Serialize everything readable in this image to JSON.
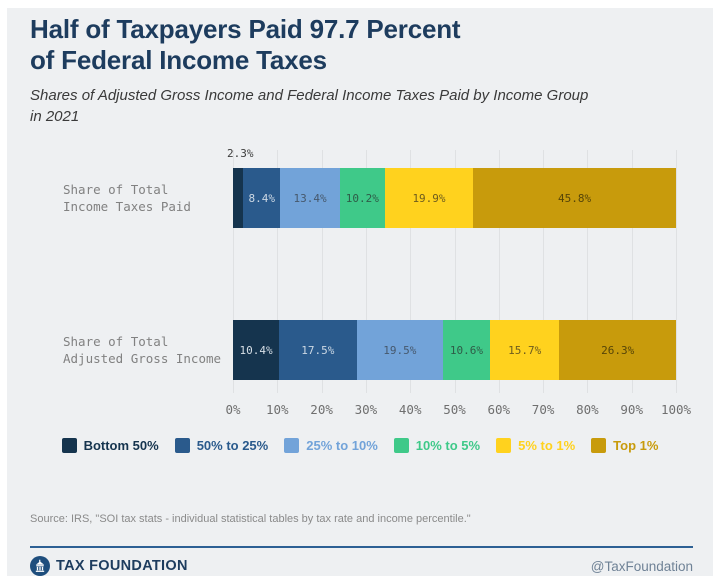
{
  "header": {
    "title": "Half of Taxpayers Paid 97.7 Percent\nof Federal Income Taxes",
    "subtitle": "Shares of Adjusted Gross Income and Federal Income Taxes Paid by Income Group\nin 2021"
  },
  "chart_data": {
    "type": "bar",
    "variant": "horizontal-stacked",
    "title": "Half of Taxpayers Paid 97.7 Percent of Federal Income Taxes",
    "categories": [
      "Share of Total\nIncome Taxes Paid",
      "Share of Total\nAdjusted Gross Income"
    ],
    "series": [
      {
        "name": "Bottom 50%",
        "color": "#15344e",
        "label_color": "#d7dfe6",
        "values": [
          2.3,
          10.4
        ]
      },
      {
        "name": "50% to 25%",
        "color": "#2a5a8c",
        "label_color": "#ccd8e4",
        "values": [
          8.4,
          17.5
        ]
      },
      {
        "name": "25% to 10%",
        "color": "#72a3d9",
        "label_color": "#46586c",
        "values": [
          13.4,
          19.5
        ]
      },
      {
        "name": "10% to 5%",
        "color": "#3fc989",
        "label_color": "#2f5c48",
        "values": [
          10.2,
          10.6
        ]
      },
      {
        "name": "5% to 1%",
        "color": "#ffd21e",
        "label_color": "#6d5c1e",
        "values": [
          19.9,
          15.7
        ]
      },
      {
        "name": "Top 1%",
        "color": "#c89b0c",
        "label_color": "#564508",
        "values": [
          45.8,
          26.3
        ]
      }
    ],
    "outside_labels": [
      {
        "row": 0,
        "series": 0
      }
    ],
    "x_ticks": [
      "0%",
      "10%",
      "20%",
      "30%",
      "40%",
      "50%",
      "60%",
      "70%",
      "80%",
      "90%",
      "100%"
    ],
    "xlim": [
      0,
      100
    ],
    "grid": true,
    "legend_position": "bottom"
  },
  "footer": {
    "source": "Source: IRS, \"SOI tax stats - individual statistical tables by tax rate and income percentile.\"",
    "brand": "TAX FOUNDATION",
    "handle": "@TaxFoundation"
  },
  "colors": {
    "accent_navy": "#1d3c5e",
    "rule_blue": "#2d6094",
    "card_bg": "#eef0f2",
    "grid_line": "#dfe1e3"
  }
}
